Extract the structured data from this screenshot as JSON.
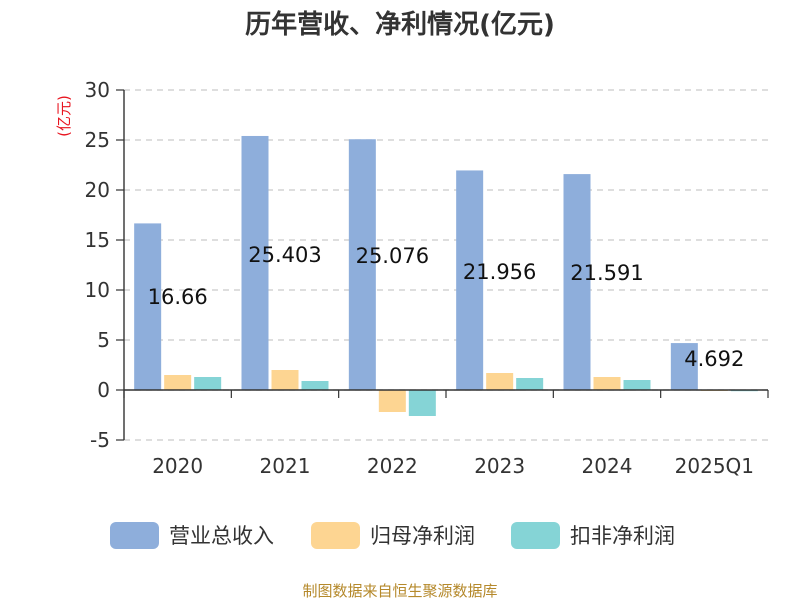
{
  "chart_data": {
    "type": "bar",
    "title": "历年营收、净利情况(亿元)",
    "ylabel": "(亿元)",
    "xlabel": "",
    "ylim": [
      -5,
      30
    ],
    "yticks": [
      -5,
      0,
      5,
      10,
      15,
      20,
      25,
      30
    ],
    "grid": true,
    "legend_position": "bottom",
    "categories": [
      "2020",
      "2021",
      "2022",
      "2023",
      "2024",
      "2025Q1"
    ],
    "series": [
      {
        "name": "营业总收入",
        "color": "#8eaedb",
        "values": [
          16.66,
          25.403,
          25.076,
          21.956,
          21.591,
          4.692
        ]
      },
      {
        "name": "归母净利润",
        "color": "#fdd592",
        "values": [
          1.5,
          2.0,
          -2.2,
          1.7,
          1.3,
          -0.1
        ]
      },
      {
        "name": "扣非净利润",
        "color": "#85d4d6",
        "values": [
          1.3,
          0.9,
          -2.6,
          1.2,
          1.0,
          -0.12
        ]
      }
    ],
    "data_labels": [
      "16.66",
      "25.403",
      "25.076",
      "21.956",
      "21.591",
      "4.692"
    ]
  },
  "footer": {
    "source": "制图数据来自恒生聚源数据库"
  }
}
